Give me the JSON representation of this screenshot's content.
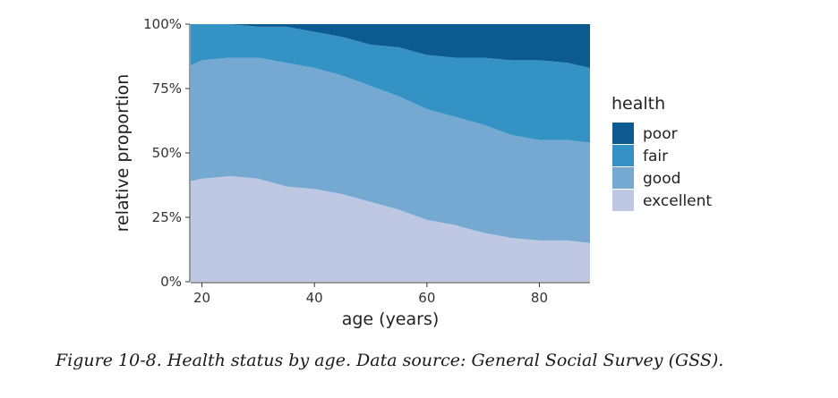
{
  "chart_data": {
    "type": "area",
    "stacked": "proportion",
    "xlabel": "age (years)",
    "ylabel": "relative proportion",
    "xlim": [
      18,
      89
    ],
    "ylim": [
      0,
      1
    ],
    "x_ticks": [
      20,
      40,
      60,
      80
    ],
    "y_ticks": [
      0,
      0.25,
      0.5,
      0.75,
      1.0
    ],
    "y_tick_labels": [
      "0%",
      "25%",
      "50%",
      "75%",
      "100%"
    ],
    "legend_title": "health",
    "legend_position": "right",
    "x": [
      18,
      20,
      25,
      30,
      35,
      40,
      45,
      50,
      55,
      60,
      65,
      70,
      75,
      80,
      85,
      89
    ],
    "series": [
      {
        "name": "excellent",
        "color": "#bec8e3",
        "values": [
          0.39,
          0.4,
          0.41,
          0.4,
          0.37,
          0.36,
          0.34,
          0.31,
          0.28,
          0.24,
          0.22,
          0.19,
          0.17,
          0.16,
          0.16,
          0.15
        ]
      },
      {
        "name": "good",
        "color": "#76a9d1",
        "values": [
          0.45,
          0.46,
          0.46,
          0.47,
          0.48,
          0.47,
          0.46,
          0.45,
          0.44,
          0.43,
          0.42,
          0.42,
          0.4,
          0.39,
          0.39,
          0.39
        ]
      },
      {
        "name": "fair",
        "color": "#3592c4",
        "values": [
          0.16,
          0.14,
          0.13,
          0.12,
          0.14,
          0.14,
          0.15,
          0.16,
          0.19,
          0.21,
          0.23,
          0.26,
          0.29,
          0.31,
          0.3,
          0.29
        ]
      },
      {
        "name": "poor",
        "color": "#0d5a91",
        "values": [
          0.0,
          0.0,
          0.0,
          0.01,
          0.01,
          0.03,
          0.05,
          0.08,
          0.09,
          0.12,
          0.13,
          0.13,
          0.14,
          0.14,
          0.15,
          0.17
        ]
      }
    ],
    "legend_order": [
      "poor",
      "fair",
      "good",
      "excellent"
    ]
  },
  "caption": "Figure 10-8. Health status by age. Data source: General Social Survey (GSS)."
}
